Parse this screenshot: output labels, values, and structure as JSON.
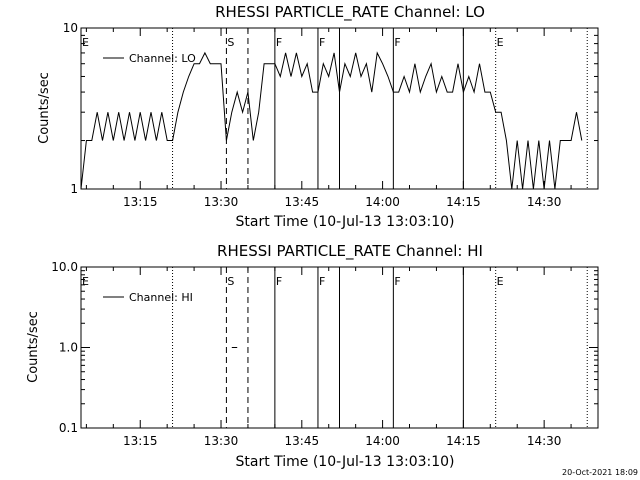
{
  "stamp": "20-Oct-2021 18:09",
  "chart_data": [
    {
      "type": "line",
      "title": "RHESSI PARTICLE_RATE Channel: LO",
      "xlabel": "Start Time (10-Jul-13 13:03:10)",
      "ylabel": "Counts/sec",
      "legend": "Channel: LO",
      "legend_placement": "top-left",
      "yscale": "log",
      "ylim": [
        1,
        10
      ],
      "xlim": [
        "13:04",
        "14:40"
      ],
      "yticks": [
        {
          "v": 1,
          "label": "1"
        },
        {
          "v": 10,
          "label": "10"
        }
      ],
      "xticks": [
        {
          "t": "13:15",
          "label": "13:15"
        },
        {
          "t": "13:30",
          "label": "13:30"
        },
        {
          "t": "13:45",
          "label": "13:45"
        },
        {
          "t": "14:00",
          "label": "14:00"
        },
        {
          "t": "14:15",
          "label": "14:15"
        },
        {
          "t": "14:30",
          "label": "14:30"
        }
      ],
      "event_lines": [
        {
          "t": "13:21",
          "style": "dotted"
        },
        {
          "t": "13:31",
          "style": "dashed"
        },
        {
          "t": "13:35",
          "style": "dashed"
        },
        {
          "t": "13:40",
          "style": "solid"
        },
        {
          "t": "13:48",
          "style": "solid"
        },
        {
          "t": "13:52",
          "style": "solid"
        },
        {
          "t": "14:02",
          "style": "solid"
        },
        {
          "t": "14:15",
          "style": "solid"
        },
        {
          "t": "14:21",
          "style": "dotted"
        },
        {
          "t": "14:38",
          "style": "dotted"
        }
      ],
      "markers": [
        {
          "t": "13:04",
          "label": "E"
        },
        {
          "t": "13:31",
          "label": "S"
        },
        {
          "t": "13:40",
          "label": "F"
        },
        {
          "t": "13:48",
          "label": "F"
        },
        {
          "t": "14:02",
          "label": "F"
        },
        {
          "t": "14:21",
          "label": "E"
        }
      ],
      "series": [
        {
          "x": [
            "13:04",
            "13:05",
            "13:06",
            "13:07",
            "13:08",
            "13:09",
            "13:10",
            "13:11",
            "13:12",
            "13:13",
            "13:14",
            "13:15",
            "13:16",
            "13:17",
            "13:18",
            "13:19",
            "13:20",
            "13:21",
            "13:22",
            "13:23",
            "13:24",
            "13:25",
            "13:26",
            "13:27",
            "13:28",
            "13:29",
            "13:30",
            "13:31",
            "13:32",
            "13:33",
            "13:34",
            "13:35",
            "13:36",
            "13:37",
            "13:38",
            "13:39",
            "13:40",
            "13:41",
            "13:42",
            "13:43",
            "13:44",
            "13:45",
            "13:46",
            "13:47",
            "13:48",
            "13:49",
            "13:50",
            "13:51",
            "13:52",
            "13:53",
            "13:54",
            "13:55",
            "13:56",
            "13:57",
            "13:58",
            "13:59",
            "14:00",
            "14:01",
            "14:02",
            "14:03",
            "14:04",
            "14:05",
            "14:06",
            "14:07",
            "14:08",
            "14:09",
            "14:10",
            "14:11",
            "14:12",
            "14:13",
            "14:14",
            "14:15",
            "14:16",
            "14:17",
            "14:18",
            "14:19",
            "14:20",
            "14:21",
            "14:22",
            "14:23",
            "14:24",
            "14:25",
            "14:26",
            "14:27",
            "14:28",
            "14:29",
            "14:30",
            "14:31",
            "14:32",
            "14:33",
            "14:34",
            "14:35",
            "14:36",
            "14:37"
          ],
          "y": [
            1.0,
            2.0,
            2.0,
            3.0,
            2.0,
            3.0,
            2.0,
            3.0,
            2.0,
            3.0,
            2.0,
            3.0,
            2.0,
            3.0,
            2.0,
            3.0,
            2.0,
            2.0,
            3.0,
            4.0,
            5.0,
            6.0,
            6.0,
            7.0,
            6.0,
            6.0,
            6.0,
            2.0,
            3.0,
            4.0,
            3.0,
            4.0,
            2.0,
            3.0,
            6.0,
            6.0,
            6.0,
            5.0,
            7.0,
            5.0,
            7.0,
            5.0,
            6.0,
            4.0,
            4.0,
            6.0,
            5.0,
            7.0,
            4.0,
            6.0,
            5.0,
            7.0,
            5.0,
            6.0,
            4.0,
            7.0,
            6.0,
            5.0,
            4.0,
            4.0,
            5.0,
            4.0,
            6.0,
            4.0,
            5.0,
            6.0,
            4.0,
            5.0,
            4.0,
            4.0,
            6.0,
            4.0,
            5.0,
            4.0,
            6.0,
            4.0,
            4.0,
            3.0,
            3.0,
            2.0,
            1.0,
            2.0,
            1.0,
            2.0,
            1.0,
            2.0,
            1.0,
            2.0,
            1.0,
            2.0,
            2.0,
            2.0,
            3.0,
            2.0
          ]
        }
      ]
    },
    {
      "type": "line",
      "title": "RHESSI PARTICLE_RATE Channel: HI",
      "xlabel": "Start Time (10-Jul-13 13:03:10)",
      "ylabel": "Counts/sec",
      "legend": "Channel: HI",
      "legend_placement": "top-left",
      "yscale": "log",
      "ylim": [
        0.1,
        10
      ],
      "xlim": [
        "13:04",
        "14:40"
      ],
      "yticks": [
        {
          "v": 0.1,
          "label": "0.1"
        },
        {
          "v": 1,
          "label": "1.0"
        },
        {
          "v": 10,
          "label": "10.0"
        }
      ],
      "xticks": [
        {
          "t": "13:15",
          "label": "13:15"
        },
        {
          "t": "13:30",
          "label": "13:30"
        },
        {
          "t": "13:45",
          "label": "13:45"
        },
        {
          "t": "14:00",
          "label": "14:00"
        },
        {
          "t": "14:15",
          "label": "14:15"
        },
        {
          "t": "14:30",
          "label": "14:30"
        }
      ],
      "event_lines": [
        {
          "t": "13:21",
          "style": "dotted"
        },
        {
          "t": "13:31",
          "style": "dashed"
        },
        {
          "t": "13:35",
          "style": "dashed"
        },
        {
          "t": "13:40",
          "style": "solid"
        },
        {
          "t": "13:48",
          "style": "solid"
        },
        {
          "t": "13:52",
          "style": "solid"
        },
        {
          "t": "14:02",
          "style": "solid"
        },
        {
          "t": "14:15",
          "style": "solid"
        },
        {
          "t": "14:21",
          "style": "dotted"
        },
        {
          "t": "14:38",
          "style": "dotted"
        }
      ],
      "markers": [
        {
          "t": "13:04",
          "label": "E"
        },
        {
          "t": "13:31",
          "label": "S"
        },
        {
          "t": "13:40",
          "label": "F"
        },
        {
          "t": "13:48",
          "label": "F"
        },
        {
          "t": "14:02",
          "label": "F"
        },
        {
          "t": "14:21",
          "label": "E"
        }
      ],
      "series": [
        {
          "x": [
            "13:32",
            "13:33"
          ],
          "y": [
            1.0,
            1.0
          ]
        }
      ]
    }
  ]
}
